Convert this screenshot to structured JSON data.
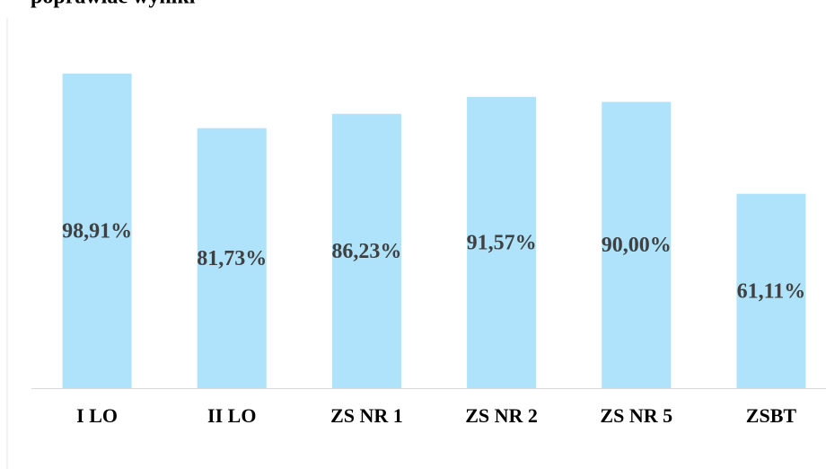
{
  "chart_data": {
    "type": "bar",
    "title": "poprawiać wyniki",
    "categories": [
      "I LO",
      "II LO",
      "ZS NR 1",
      "ZS NR 2",
      "ZS NR 5",
      "ZSBT"
    ],
    "values": [
      98.91,
      81.73,
      86.23,
      91.57,
      90.0,
      61.11
    ],
    "value_labels": [
      "98,91%",
      "81,73%",
      "86,23%",
      "91,57%",
      "90,00%",
      "61,11%"
    ],
    "color": "#aee3fb",
    "ylim": [
      0,
      100
    ]
  }
}
